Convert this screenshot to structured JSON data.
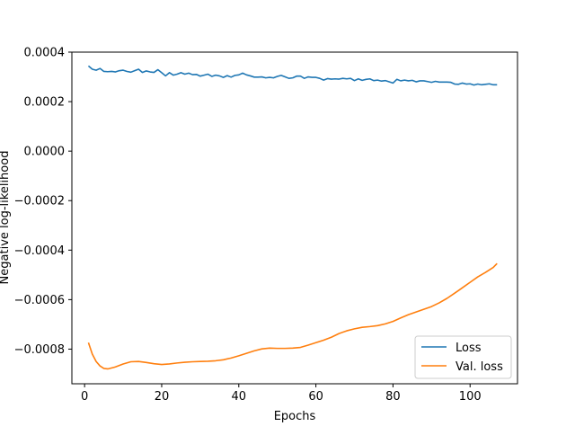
{
  "chart_data": {
    "type": "line",
    "title": "",
    "xlabel": "Epochs",
    "ylabel": "Negative log-likelihood",
    "xlim": [
      -3.3,
      112.3
    ],
    "ylim": [
      -0.00094,
      0.0004
    ],
    "x_ticks": [
      0,
      20,
      40,
      60,
      80,
      100
    ],
    "x_tick_labels": [
      "0",
      "20",
      "40",
      "60",
      "80",
      "100"
    ],
    "y_ticks": [
      0.0004,
      0.0002,
      0.0,
      -0.0002,
      -0.0004,
      -0.0006,
      -0.0008
    ],
    "y_tick_labels": [
      "0.0004",
      "0.0002",
      "0.0000",
      "−0.0002",
      "−0.0004",
      "−0.0006",
      "−0.0008"
    ],
    "grid": false,
    "legend": {
      "position": "bottom-right",
      "entries": [
        "Loss",
        "Val. loss"
      ]
    },
    "series": [
      {
        "name": "Loss",
        "color": "#1f77b4",
        "x": [
          1,
          2,
          3,
          4,
          5,
          6,
          7,
          8,
          9,
          10,
          11,
          12,
          13,
          14,
          15,
          16,
          17,
          18,
          19,
          20,
          21,
          22,
          23,
          24,
          25,
          26,
          27,
          28,
          29,
          30,
          31,
          32,
          33,
          34,
          35,
          36,
          37,
          38,
          39,
          40,
          41,
          42,
          43,
          44,
          45,
          46,
          47,
          48,
          49,
          50,
          51,
          52,
          53,
          54,
          55,
          56,
          57,
          58,
          59,
          60,
          61,
          62,
          63,
          64,
          65,
          66,
          67,
          68,
          69,
          70,
          71,
          72,
          73,
          74,
          75,
          76,
          77,
          78,
          79,
          80,
          81,
          82,
          83,
          84,
          85,
          86,
          87,
          88,
          89,
          90,
          91,
          92,
          93,
          94,
          95,
          96,
          97,
          98,
          99,
          100,
          101,
          102,
          103,
          104,
          105,
          106,
          107
        ],
        "y": [
          0.000344,
          0.000331,
          0.000327,
          0.000334,
          0.000322,
          0.000321,
          0.000322,
          0.00032,
          0.000325,
          0.000327,
          0.000322,
          0.000319,
          0.000325,
          0.000331,
          0.000318,
          0.000324,
          0.00032,
          0.000318,
          0.000329,
          0.000317,
          0.000304,
          0.000317,
          0.000307,
          0.000311,
          0.000317,
          0.000311,
          0.000315,
          0.000309,
          0.00031,
          0.000303,
          0.000307,
          0.000311,
          0.000302,
          0.000307,
          0.000304,
          0.000298,
          0.000305,
          0.000299,
          0.000306,
          0.000308,
          0.000315,
          0.000308,
          0.000304,
          0.000299,
          0.000299,
          0.0003,
          0.000296,
          0.000298,
          0.000296,
          0.000302,
          0.000306,
          0.0003,
          0.000294,
          0.000296,
          0.000303,
          0.000303,
          0.000294,
          0.0003,
          0.000298,
          0.000298,
          0.000294,
          0.000287,
          0.000293,
          0.000291,
          0.000292,
          0.000291,
          0.000294,
          0.000292,
          0.000294,
          0.000285,
          0.000292,
          0.000286,
          0.00029,
          0.000292,
          0.000285,
          0.000287,
          0.000283,
          0.000285,
          0.00028,
          0.000275,
          0.00029,
          0.000284,
          0.000287,
          0.000284,
          0.000286,
          0.00028,
          0.000284,
          0.000284,
          0.000281,
          0.000278,
          0.000282,
          0.000279,
          0.000279,
          0.000279,
          0.000278,
          0.000271,
          0.00027,
          0.000275,
          0.000271,
          0.000272,
          0.000267,
          0.000271,
          0.000268,
          0.00027,
          0.000272,
          0.000268,
          0.000268
        ]
      },
      {
        "name": "Val. loss",
        "color": "#ff7f0e",
        "x": [
          1,
          2,
          3,
          4,
          5,
          6,
          8,
          10,
          12,
          14,
          16,
          18,
          20,
          22,
          24,
          26,
          28,
          30,
          32,
          34,
          36,
          38,
          40,
          42,
          44,
          46,
          48,
          50,
          52,
          54,
          56,
          58,
          60,
          62,
          64,
          66,
          68,
          70,
          72,
          74,
          76,
          78,
          80,
          82,
          84,
          86,
          88,
          90,
          92,
          94,
          96,
          98,
          100,
          102,
          104,
          106,
          107
        ],
        "y": [
          -0.000774,
          -0.00082,
          -0.00085,
          -0.000868,
          -0.000878,
          -0.00088,
          -0.000872,
          -0.00086,
          -0.000851,
          -0.00085,
          -0.000854,
          -0.000859,
          -0.000862,
          -0.00086,
          -0.000856,
          -0.000853,
          -0.000851,
          -0.00085,
          -0.000849,
          -0.000847,
          -0.000843,
          -0.000836,
          -0.000827,
          -0.000817,
          -0.000807,
          -0.000799,
          -0.000796,
          -0.000797,
          -0.000797,
          -0.000796,
          -0.000793,
          -0.000784,
          -0.000774,
          -0.000764,
          -0.000752,
          -0.000737,
          -0.000726,
          -0.000718,
          -0.000712,
          -0.000709,
          -0.000705,
          -0.000698,
          -0.000688,
          -0.000674,
          -0.000661,
          -0.00065,
          -0.000639,
          -0.000628,
          -0.000613,
          -0.000595,
          -0.000574,
          -0.000552,
          -0.00053,
          -0.000508,
          -0.00049,
          -0.00047,
          -0.000454
        ]
      }
    ]
  }
}
